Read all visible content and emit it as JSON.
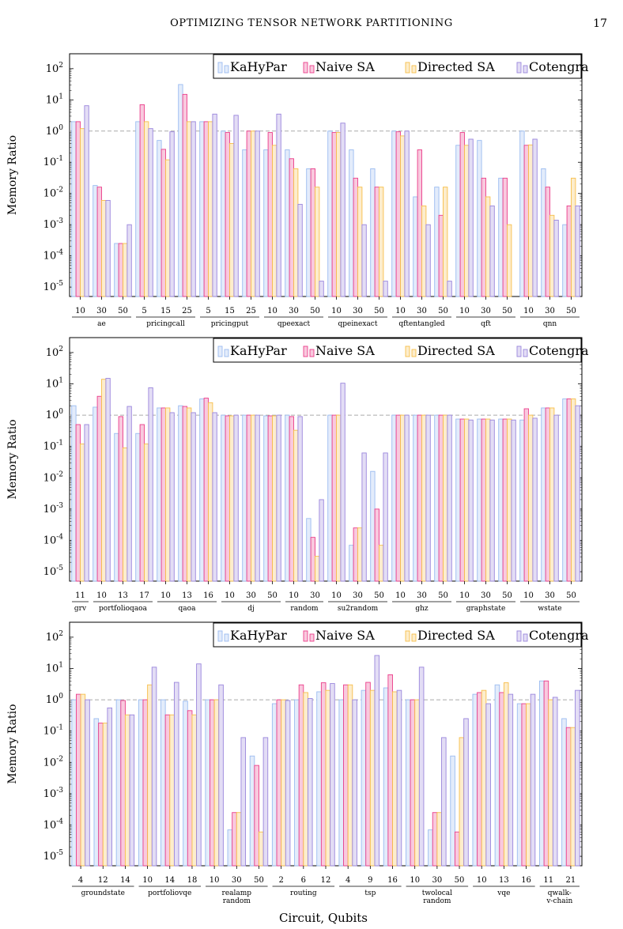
{
  "header": {
    "running_title": "OPTIMIZING TENSOR NETWORK PARTITIONING",
    "page_number": "17"
  },
  "colors": {
    "KaHyPar": "#9bbcf0",
    "Naive SA": "#ea3e8a",
    "Directed SA": "#f7be4a",
    "Cotengra": "#9a86dc",
    "reference_line": "#aaaaaa"
  },
  "x_axis_title": "Circuit, Qubits",
  "chart_data": [
    {
      "type": "bar",
      "ylabel": "Memory Ratio",
      "yscale": "log",
      "ylim": [
        5e-06,
        300
      ],
      "reference_line": 1,
      "legend": [
        "KaHyPar",
        "Naive SA",
        "Directed SA",
        "Cotengra"
      ],
      "legend_position": "top-right",
      "groups": [
        {
          "name": [
            "ae"
          ],
          "ticks": [
            "10",
            "30",
            "50"
          ]
        },
        {
          "name": [
            "pricingcall"
          ],
          "ticks": [
            "5",
            "15",
            "25"
          ]
        },
        {
          "name": [
            "pricingput"
          ],
          "ticks": [
            "5",
            "15",
            "25"
          ]
        },
        {
          "name": [
            "qpeexact"
          ],
          "ticks": [
            "10",
            "30",
            "50"
          ]
        },
        {
          "name": [
            "qpeinexact"
          ],
          "ticks": [
            "10",
            "30",
            "50"
          ]
        },
        {
          "name": [
            "qftentangled"
          ],
          "ticks": [
            "10",
            "30",
            "50"
          ]
        },
        {
          "name": [
            "qft"
          ],
          "ticks": [
            "10",
            "30",
            "50"
          ]
        },
        {
          "name": [
            "qnn"
          ],
          "ticks": [
            "10",
            "30",
            "50"
          ]
        }
      ],
      "series": [
        {
          "name": "KaHyPar",
          "values": [
            2,
            0.018,
            0.00025,
            2,
            0.5,
            31,
            2,
            1,
            0.25,
            0.25,
            0.25,
            0.062,
            1,
            0.25,
            0.062,
            1,
            0.0078,
            0.016,
            0.35,
            0.5,
            0.031,
            1,
            0.062,
            0.001
          ]
        },
        {
          "name": "Naive SA",
          "values": [
            2,
            0.016,
            0.00025,
            7,
            0.26,
            15,
            2,
            0.9,
            1,
            0.9,
            0.13,
            0.062,
            0.9,
            0.031,
            0.016,
            0.95,
            0.25,
            0.002,
            0.9,
            0.031,
            0.031,
            0.35,
            0.016,
            0.004
          ]
        },
        {
          "name": "Directed SA",
          "values": [
            1.2,
            0.006,
            0.00025,
            2,
            0.12,
            2,
            2,
            0.4,
            1,
            0.35,
            0.062,
            0.016,
            0.9,
            0.016,
            0.016,
            0.7,
            0.004,
            0.016,
            0.35,
            0.0078,
            0.001,
            0.36,
            0.002,
            0.031
          ]
        },
        {
          "name": "Cotengra",
          "values": [
            6.5,
            0.006,
            0.001,
            1.2,
            0.95,
            2,
            3.5,
            3.2,
            1,
            3.5,
            0.0045,
            1.55e-05,
            1.8,
            0.001,
            1.55e-05,
            1,
            0.001,
            1.55e-05,
            0.55,
            0.004,
            3e-06,
            0.55,
            0.0014,
            0.004
          ]
        }
      ]
    },
    {
      "type": "bar",
      "ylabel": "Memory Ratio",
      "yscale": "log",
      "ylim": [
        5e-06,
        300
      ],
      "reference_line": 1,
      "legend": [
        "KaHyPar",
        "Naive SA",
        "Directed SA",
        "Cotengra"
      ],
      "legend_position": "top-right",
      "groups": [
        {
          "name": [
            "grv"
          ],
          "ticks": [
            "11"
          ]
        },
        {
          "name": [
            "portfolioqaoa"
          ],
          "ticks": [
            "10",
            "13",
            "17"
          ]
        },
        {
          "name": [
            "qaoa"
          ],
          "ticks": [
            "10",
            "13",
            "16"
          ]
        },
        {
          "name": [
            "dj"
          ],
          "ticks": [
            "10",
            "30",
            "50"
          ]
        },
        {
          "name": [
            "random"
          ],
          "ticks": [
            "10",
            "30"
          ]
        },
        {
          "name": [
            "su2random"
          ],
          "ticks": [
            "10",
            "30",
            "50"
          ]
        },
        {
          "name": [
            "ghz"
          ],
          "ticks": [
            "10",
            "30",
            "50"
          ]
        },
        {
          "name": [
            "graphstate"
          ],
          "ticks": [
            "10",
            "30",
            "50"
          ]
        },
        {
          "name": [
            "wstate"
          ],
          "ticks": [
            "10",
            "30",
            "50"
          ]
        }
      ],
      "series": [
        {
          "name": "KaHyPar",
          "values": [
            2,
            1.8,
            0.26,
            0.26,
            1.7,
            2,
            3.3,
            1,
            1,
            0.95,
            1,
            0.0005,
            1,
            7e-05,
            0.016,
            1,
            1,
            1,
            0.75,
            0.75,
            0.75,
            0.7,
            1.7,
            3.3
          ]
        },
        {
          "name": "Naive SA",
          "values": [
            0.5,
            4,
            0.9,
            0.5,
            1.7,
            1.9,
            3.5,
            0.95,
            1,
            0.95,
            0.9,
            0.000125,
            1,
            0.00025,
            0.001,
            1,
            1,
            1,
            0.75,
            0.75,
            0.75,
            1.6,
            1.7,
            3.3
          ]
        },
        {
          "name": "Directed SA",
          "values": [
            0.12,
            14,
            0.09,
            0.12,
            1.7,
            1.7,
            2.5,
            0.95,
            1,
            0.95,
            0.33,
            3.1e-05,
            1,
            0.00025,
            7e-05,
            1,
            1,
            1,
            0.75,
            0.75,
            0.75,
            1,
            1.7,
            3.3
          ]
        },
        {
          "name": "Cotengra",
          "values": [
            0.5,
            15,
            1.9,
            7.5,
            1.2,
            1.2,
            1.2,
            1,
            1,
            1,
            0.9,
            0.002,
            10.5,
            0.062,
            0.062,
            1,
            1,
            1,
            0.7,
            0.7,
            0.7,
            0.8,
            1,
            2
          ]
        }
      ]
    },
    {
      "type": "bar",
      "ylabel": "Memory Ratio",
      "yscale": "log",
      "ylim": [
        5e-06,
        300
      ],
      "reference_line": 1,
      "legend": [
        "KaHyPar",
        "Naive SA",
        "Directed SA",
        "Cotengra"
      ],
      "legend_position": "top-right",
      "groups": [
        {
          "name": [
            "groundstate"
          ],
          "ticks": [
            "4",
            "12",
            "14"
          ]
        },
        {
          "name": [
            "portfoliovqe"
          ],
          "ticks": [
            "10",
            "14",
            "18"
          ]
        },
        {
          "name": [
            "realamp",
            "random"
          ],
          "ticks": [
            "10",
            "30",
            "50"
          ]
        },
        {
          "name": [
            "routing"
          ],
          "ticks": [
            "2",
            "6",
            "12"
          ]
        },
        {
          "name": [
            "tsp"
          ],
          "ticks": [
            "4",
            "9",
            "16"
          ]
        },
        {
          "name": [
            "twolocal",
            "random"
          ],
          "ticks": [
            "10",
            "30",
            "50"
          ]
        },
        {
          "name": [
            "vqe"
          ],
          "ticks": [
            "10",
            "13",
            "16"
          ]
        },
        {
          "name": [
            "qwalk-",
            "v-chain"
          ],
          "ticks": [
            "11",
            "21"
          ]
        }
      ],
      "series": [
        {
          "name": "KaHyPar",
          "values": [
            1,
            0.25,
            1,
            1,
            1,
            0.9,
            1,
            7e-05,
            0.016,
            0.75,
            1,
            1.8,
            1,
            2,
            2.4,
            1,
            7e-05,
            0.016,
            1.5,
            3,
            0.75,
            4,
            0.25
          ]
        },
        {
          "name": "Naive SA",
          "values": [
            1.5,
            0.18,
            0.95,
            1,
            0.33,
            0.45,
            1,
            0.00025,
            0.008,
            1,
            3,
            3.5,
            3,
            3.6,
            6.3,
            1,
            0.00025,
            6e-05,
            1.7,
            1.7,
            0.75,
            4,
            0.13
          ]
        },
        {
          "name": "Directed SA",
          "values": [
            1.5,
            0.18,
            0.33,
            3,
            0.33,
            0.33,
            1,
            0.00025,
            6e-05,
            1,
            1.7,
            2,
            3,
            2,
            1.8,
            1,
            0.00025,
            0.062,
            2,
            3.5,
            0.75,
            1,
            0.13
          ]
        },
        {
          "name": "Cotengra",
          "values": [
            1,
            0.55,
            0.33,
            11,
            3.6,
            14,
            3,
            0.062,
            0.062,
            0.95,
            1.1,
            3.3,
            1,
            26,
            2,
            11,
            0.062,
            0.25,
            0.75,
            1.5,
            1.5,
            1.2,
            2
          ]
        }
      ]
    }
  ]
}
